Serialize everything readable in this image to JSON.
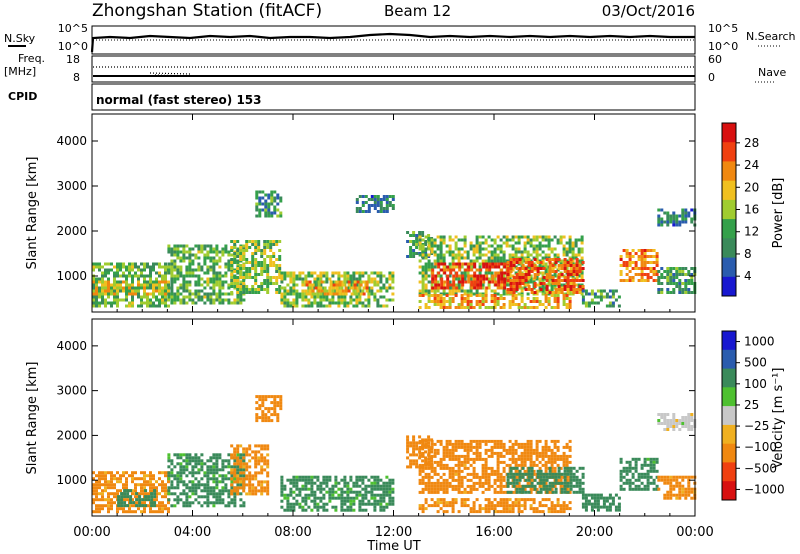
{
  "header": {
    "station": "Zhongshan Station (fitACF)",
    "beam": "Beam 12",
    "date": "03/Oct/2016"
  },
  "summary": {
    "nsky_label": "N.Sky",
    "nsky_ticks": [
      "10^5",
      "10^0"
    ],
    "nsearch_label": "N.Search",
    "nsearch_ticks": [
      "10^5",
      "10^0"
    ],
    "freq_label_top": "Freq.",
    "freq_label_unit": "[MHz]",
    "freq_ticks": [
      "18",
      "8"
    ],
    "nave_label": "Nave",
    "nave_ticks": [
      "60",
      "0"
    ],
    "cpid_label": "CPID",
    "cpid_text": "normal (fast stereo) 153"
  },
  "colors": {
    "power": [
      "#1818d0",
      "#2a5cae",
      "#3a8a5a",
      "#34a04a",
      "#a0cc30",
      "#f0c020",
      "#f08810",
      "#f04010",
      "#d81010"
    ],
    "velocity": [
      "#d81010",
      "#f04010",
      "#f08810",
      "#f0b020",
      "#c8c8c8",
      "#4ec030",
      "#3a8a5a",
      "#2a5cae",
      "#1818d0"
    ]
  },
  "chart_data": [
    {
      "type": "heatmap",
      "name": "power",
      "ylabel": "Slant Range [km]",
      "yticks": [
        1000,
        2000,
        3000,
        4000
      ],
      "ylim": [
        200,
        4600
      ],
      "xlabel": "Time UT",
      "xticks": [
        "00:00",
        "04:00",
        "08:00",
        "12:00",
        "16:00",
        "20:00",
        "00:00"
      ],
      "xlim_hours": [
        0,
        24
      ],
      "colorbar_label": "Power [dB]",
      "colorbar_ticks": [
        "28",
        "24",
        "20",
        "16",
        "12",
        "8",
        "4"
      ],
      "colorbar_range": [
        0,
        30
      ],
      "regions": [
        {
          "t": [
            0.0,
            3.0
          ],
          "r": [
            300,
            1300
          ],
          "value": 12
        },
        {
          "t": [
            0.0,
            3.0
          ],
          "r": [
            600,
            900
          ],
          "value": 18
        },
        {
          "t": [
            3.0,
            6.0
          ],
          "r": [
            400,
            1700
          ],
          "value": 12
        },
        {
          "t": [
            5.5,
            7.5
          ],
          "r": [
            600,
            1800
          ],
          "value": 14
        },
        {
          "t": [
            6.5,
            7.5
          ],
          "r": [
            2300,
            2900
          ],
          "value": 10
        },
        {
          "t": [
            7.5,
            12.0
          ],
          "r": [
            300,
            1100
          ],
          "value": 14
        },
        {
          "t": [
            8.5,
            11.0
          ],
          "r": [
            600,
            900
          ],
          "value": 20
        },
        {
          "t": [
            10.5,
            12.0
          ],
          "r": [
            2400,
            2800
          ],
          "value": 8
        },
        {
          "t": [
            12.5,
            13.5
          ],
          "r": [
            1400,
            2000
          ],
          "value": 10
        },
        {
          "t": [
            13.0,
            19.5
          ],
          "r": [
            600,
            1900
          ],
          "value": 14
        },
        {
          "t": [
            13.5,
            16.5
          ],
          "r": [
            700,
            1300
          ],
          "value": 26
        },
        {
          "t": [
            16.5,
            19.5
          ],
          "r": [
            600,
            1400
          ],
          "value": 24
        },
        {
          "t": [
            13.0,
            19.0
          ],
          "r": [
            300,
            600
          ],
          "value": 20
        },
        {
          "t": [
            19.5,
            21.0
          ],
          "r": [
            300,
            700
          ],
          "value": 10
        },
        {
          "t": [
            21.0,
            22.5
          ],
          "r": [
            900,
            1600
          ],
          "value": 22
        },
        {
          "t": [
            22.5,
            24.0
          ],
          "r": [
            2100,
            2500
          ],
          "value": 8
        },
        {
          "t": [
            22.5,
            24.0
          ],
          "r": [
            600,
            1200
          ],
          "value": 10
        }
      ]
    },
    {
      "type": "heatmap",
      "name": "velocity",
      "ylabel": "Slant Range [km]",
      "yticks": [
        1000,
        2000,
        3000,
        4000
      ],
      "ylim": [
        200,
        4600
      ],
      "xlabel": "Time UT",
      "xticks": [
        "00:00",
        "04:00",
        "08:00",
        "12:00",
        "16:00",
        "20:00",
        "00:00"
      ],
      "xlim_hours": [
        0,
        24
      ],
      "colorbar_label": "Velocity [m s⁻¹]",
      "colorbar_ticks": [
        "1000",
        "500",
        "100",
        "25",
        "−25",
        "−100",
        "−500",
        "−1000"
      ],
      "regions": [
        {
          "t": [
            0.0,
            3.0
          ],
          "r": [
            300,
            1200
          ],
          "value": -150
        },
        {
          "t": [
            1.0,
            2.5
          ],
          "r": [
            400,
            800
          ],
          "value": 200
        },
        {
          "t": [
            3.0,
            6.0
          ],
          "r": [
            400,
            1600
          ],
          "value": 150
        },
        {
          "t": [
            5.5,
            7.0
          ],
          "r": [
            700,
            1800
          ],
          "value": -150
        },
        {
          "t": [
            6.5,
            7.5
          ],
          "r": [
            2300,
            2900
          ],
          "value": -200
        },
        {
          "t": [
            7.5,
            12.0
          ],
          "r": [
            300,
            1100
          ],
          "value": 150
        },
        {
          "t": [
            12.5,
            13.5
          ],
          "r": [
            1300,
            2000
          ],
          "value": -200
        },
        {
          "t": [
            13.0,
            19.0
          ],
          "r": [
            700,
            1900
          ],
          "value": -200
        },
        {
          "t": [
            16.5,
            19.5
          ],
          "r": [
            700,
            1300
          ],
          "value": 200
        },
        {
          "t": [
            13.0,
            19.0
          ],
          "r": [
            300,
            600
          ],
          "value": -150
        },
        {
          "t": [
            19.5,
            21.0
          ],
          "r": [
            300,
            700
          ],
          "value": 200
        },
        {
          "t": [
            21.0,
            22.5
          ],
          "r": [
            800,
            1500
          ],
          "value": 200
        },
        {
          "t": [
            22.5,
            24.0
          ],
          "r": [
            2100,
            2500
          ],
          "value": 0
        },
        {
          "t": [
            22.5,
            24.0
          ],
          "r": [
            600,
            1100
          ],
          "value": -150
        }
      ]
    }
  ]
}
